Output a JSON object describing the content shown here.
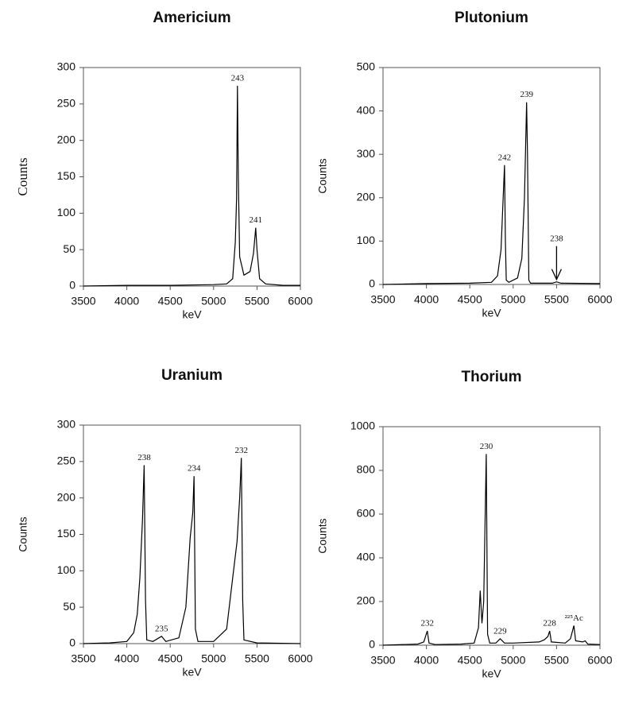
{
  "chart_data": [
    {
      "type": "line",
      "title": "Americium",
      "x_label": "keV",
      "y_label": "Counts",
      "color": "#000000",
      "xlim": [
        3500,
        6000
      ],
      "xticks": [
        3500,
        4000,
        4500,
        5000,
        5500,
        6000
      ],
      "ylim": [
        0,
        300
      ],
      "yticks": [
        0,
        50,
        100,
        150,
        200,
        250,
        300
      ],
      "x": [
        3500,
        4000,
        4500,
        5000,
        5150,
        5220,
        5250,
        5265,
        5275,
        5285,
        5300,
        5350,
        5420,
        5460,
        5485,
        5500,
        5530,
        5600,
        5800,
        6000
      ],
      "values": [
        0,
        1,
        1,
        2,
        3,
        10,
        60,
        120,
        275,
        150,
        40,
        15,
        20,
        45,
        80,
        50,
        10,
        3,
        1,
        1
      ],
      "annotations": [
        {
          "text": "243",
          "x": 5275,
          "y": 275
        },
        {
          "text": "241",
          "x": 5485,
          "y": 80
        }
      ]
    },
    {
      "type": "line",
      "title": "Plutonium",
      "x_label": "keV",
      "y_label": "Counts",
      "color": "#000000",
      "xlim": [
        3500,
        6000
      ],
      "xticks": [
        3500,
        4000,
        4500,
        5000,
        5500,
        6000
      ],
      "ylim": [
        0,
        500
      ],
      "yticks": [
        0,
        100,
        200,
        300,
        400,
        500
      ],
      "x": [
        3500,
        4000,
        4500,
        4750,
        4820,
        4860,
        4885,
        4900,
        4910,
        4920,
        4950,
        5050,
        5100,
        5130,
        5155,
        5165,
        5180,
        5200,
        5450,
        5500,
        5550,
        6000
      ],
      "values": [
        0,
        2,
        3,
        5,
        20,
        80,
        200,
        275,
        100,
        10,
        5,
        15,
        60,
        200,
        420,
        300,
        10,
        3,
        3,
        6,
        3,
        2
      ],
      "annotations": [
        {
          "text": "242",
          "x": 4900,
          "y": 275
        },
        {
          "text": "239",
          "x": 5155,
          "y": 420
        },
        {
          "text": "238",
          "x": 5500,
          "y": 6,
          "arrow": true
        }
      ]
    },
    {
      "type": "line",
      "title": "Uranium",
      "x_label": "keV",
      "y_label": "Counts",
      "color": "#000000",
      "xlim": [
        3500,
        6000
      ],
      "xticks": [
        3500,
        4000,
        4500,
        5000,
        5500,
        6000
      ],
      "ylim": [
        0,
        300
      ],
      "yticks": [
        0,
        50,
        100,
        150,
        200,
        250,
        300
      ],
      "x": [
        3500,
        3800,
        4000,
        4080,
        4120,
        4150,
        4180,
        4200,
        4215,
        4230,
        4300,
        4400,
        4450,
        4600,
        4680,
        4730,
        4760,
        4775,
        4790,
        4820,
        5000,
        5150,
        5220,
        5270,
        5300,
        5320,
        5335,
        5350,
        5500,
        6000
      ],
      "values": [
        0,
        1,
        3,
        15,
        40,
        90,
        170,
        245,
        60,
        5,
        3,
        10,
        3,
        8,
        50,
        145,
        180,
        230,
        20,
        3,
        3,
        20,
        90,
        140,
        200,
        255,
        60,
        5,
        1,
        0
      ],
      "annotations": [
        {
          "text": "238",
          "x": 4200,
          "y": 245
        },
        {
          "text": "235",
          "x": 4400,
          "y": 10
        },
        {
          "text": "234",
          "x": 4775,
          "y": 230
        },
        {
          "text": "232",
          "x": 5320,
          "y": 255
        }
      ]
    },
    {
      "type": "line",
      "title": "Thorium",
      "x_label": "keV",
      "y_label": "Counts",
      "color": "#000000",
      "xlim": [
        3500,
        6000
      ],
      "xticks": [
        3500,
        4000,
        4500,
        5000,
        5500,
        6000
      ],
      "ylim": [
        0,
        1000
      ],
      "yticks": [
        0,
        200,
        400,
        600,
        800,
        1000
      ],
      "x": [
        3500,
        3900,
        3970,
        4010,
        4030,
        4100,
        4400,
        4550,
        4600,
        4620,
        4640,
        4660,
        4690,
        4705,
        4730,
        4800,
        4850,
        4900,
        5000,
        5300,
        5360,
        5400,
        5420,
        5440,
        5600,
        5660,
        5700,
        5720,
        5800,
        5830,
        5860,
        6000
      ],
      "values": [
        0,
        5,
        15,
        65,
        10,
        3,
        5,
        10,
        80,
        250,
        100,
        200,
        875,
        50,
        10,
        10,
        30,
        10,
        10,
        15,
        25,
        40,
        65,
        15,
        10,
        30,
        90,
        20,
        15,
        20,
        5,
        3
      ],
      "annotations": [
        {
          "text": "232",
          "x": 4010,
          "y": 65
        },
        {
          "text": "230",
          "x": 4690,
          "y": 875
        },
        {
          "text": "229",
          "x": 4850,
          "y": 30
        },
        {
          "text": "228",
          "x": 5420,
          "y": 65
        },
        {
          "text": "²²⁵Ac",
          "x": 5700,
          "y": 90
        }
      ]
    }
  ]
}
